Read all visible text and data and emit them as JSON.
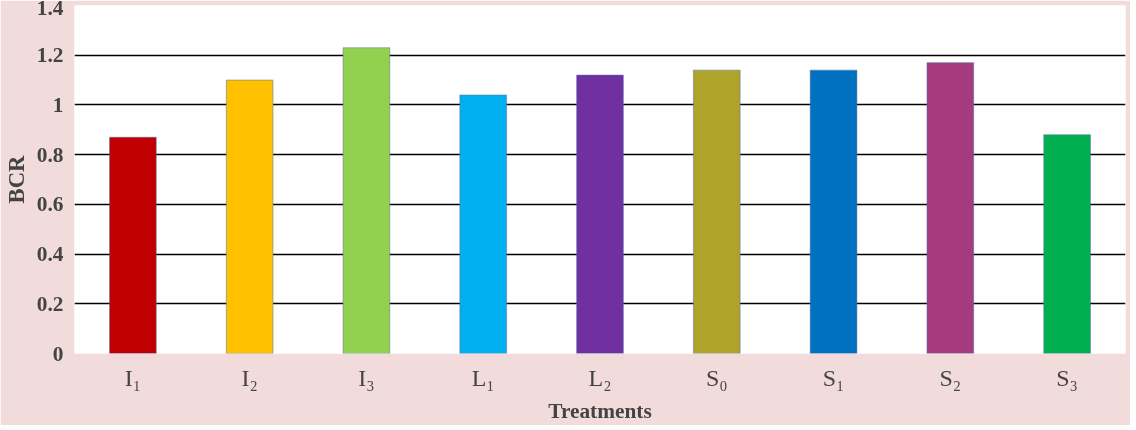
{
  "chart_data": {
    "type": "bar",
    "xlabel": "Treatments",
    "ylabel": "BCR",
    "categories": [
      "I₁",
      "I₂",
      "I₃",
      "L₁",
      "L₂",
      "S₀",
      "S₁",
      "S₂",
      "S₃"
    ],
    "values": [
      0.87,
      1.1,
      1.23,
      1.04,
      1.12,
      1.14,
      1.14,
      1.17,
      0.88
    ],
    "colors": [
      "#c00000",
      "#ffc000",
      "#92d050",
      "#00b0f0",
      "#7030a0",
      "#b0a32a",
      "#0070c0",
      "#a63a7e",
      "#00b050"
    ],
    "ylim": [
      0,
      1.4
    ],
    "yticks": [
      0,
      {
        "value": 0.2,
        "label": "0.2"
      },
      {
        "value": 0.4,
        "label": "0.4"
      },
      {
        "value": 0.6,
        "label": "0.6"
      },
      {
        "value": 0.8,
        "label": "0.8"
      },
      1,
      {
        "value": 1.2,
        "label": "1.2"
      },
      {
        "value": 1.4,
        "label": "1.4"
      }
    ],
    "grid": "y"
  }
}
